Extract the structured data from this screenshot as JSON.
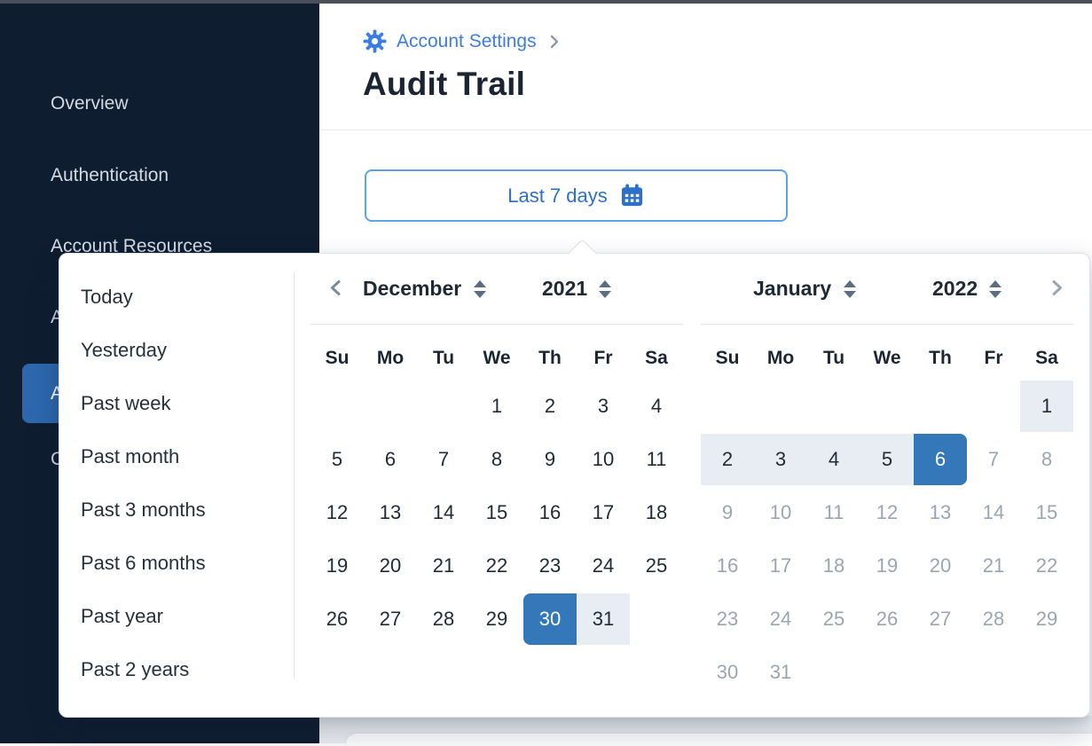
{
  "sidebar": {
    "items": [
      {
        "label": "Overview",
        "active": false
      },
      {
        "label": "Authentication",
        "active": false
      },
      {
        "label": "Account Resources",
        "active": false
      },
      {
        "label": "A",
        "active": false
      },
      {
        "label": "A",
        "active": true
      },
      {
        "label": "C",
        "active": false
      }
    ]
  },
  "breadcrumb": {
    "label": "Account Settings"
  },
  "page": {
    "title": "Audit Trail"
  },
  "date_button": {
    "label": "Last 7 days",
    "icon": "calendar-icon"
  },
  "picker": {
    "presets": [
      "Today",
      "Yesterday",
      "Past week",
      "Past month",
      "Past 3 months",
      "Past 6 months",
      "Past year",
      "Past 2 years"
    ],
    "weekdays": [
      "Su",
      "Mo",
      "Tu",
      "We",
      "Th",
      "Fr",
      "Sa"
    ],
    "months": [
      {
        "name": "December",
        "year": "2021",
        "nav": "prev",
        "days": [
          {
            "d": ""
          },
          {
            "d": ""
          },
          {
            "d": ""
          },
          {
            "d": "1"
          },
          {
            "d": "2"
          },
          {
            "d": "3"
          },
          {
            "d": "4"
          },
          {
            "d": "5"
          },
          {
            "d": "6"
          },
          {
            "d": "7"
          },
          {
            "d": "8"
          },
          {
            "d": "9"
          },
          {
            "d": "10"
          },
          {
            "d": "11"
          },
          {
            "d": "12"
          },
          {
            "d": "13"
          },
          {
            "d": "14"
          },
          {
            "d": "15"
          },
          {
            "d": "16"
          },
          {
            "d": "17"
          },
          {
            "d": "18"
          },
          {
            "d": "19"
          },
          {
            "d": "20"
          },
          {
            "d": "21"
          },
          {
            "d": "22"
          },
          {
            "d": "23"
          },
          {
            "d": "24"
          },
          {
            "d": "25"
          },
          {
            "d": "26"
          },
          {
            "d": "27"
          },
          {
            "d": "28"
          },
          {
            "d": "29"
          },
          {
            "d": "30",
            "s": "sel-start"
          },
          {
            "d": "31",
            "s": "range"
          },
          {
            "d": ""
          }
        ]
      },
      {
        "name": "January",
        "year": "2022",
        "nav": "next",
        "days": [
          {
            "d": ""
          },
          {
            "d": ""
          },
          {
            "d": ""
          },
          {
            "d": ""
          },
          {
            "d": ""
          },
          {
            "d": ""
          },
          {
            "d": "1",
            "s": "range"
          },
          {
            "d": "2",
            "s": "range"
          },
          {
            "d": "3",
            "s": "range"
          },
          {
            "d": "4",
            "s": "range"
          },
          {
            "d": "5",
            "s": "range"
          },
          {
            "d": "6",
            "s": "sel-end"
          },
          {
            "d": "7",
            "s": "muted"
          },
          {
            "d": "8",
            "s": "muted"
          },
          {
            "d": "9",
            "s": "muted"
          },
          {
            "d": "10",
            "s": "muted"
          },
          {
            "d": "11",
            "s": "muted"
          },
          {
            "d": "12",
            "s": "muted"
          },
          {
            "d": "13",
            "s": "muted"
          },
          {
            "d": "14",
            "s": "muted"
          },
          {
            "d": "15",
            "s": "muted"
          },
          {
            "d": "16",
            "s": "muted"
          },
          {
            "d": "17",
            "s": "muted"
          },
          {
            "d": "18",
            "s": "muted"
          },
          {
            "d": "19",
            "s": "muted"
          },
          {
            "d": "20",
            "s": "muted"
          },
          {
            "d": "21",
            "s": "muted"
          },
          {
            "d": "22",
            "s": "muted"
          },
          {
            "d": "23",
            "s": "muted"
          },
          {
            "d": "24",
            "s": "muted"
          },
          {
            "d": "25",
            "s": "muted"
          },
          {
            "d": "26",
            "s": "muted"
          },
          {
            "d": "27",
            "s": "muted"
          },
          {
            "d": "28",
            "s": "muted"
          },
          {
            "d": "29",
            "s": "muted"
          },
          {
            "d": "30",
            "s": "muted"
          },
          {
            "d": "31",
            "s": "muted"
          },
          {
            "d": ""
          },
          {
            "d": ""
          },
          {
            "d": ""
          },
          {
            "d": ""
          },
          {
            "d": ""
          }
        ]
      }
    ]
  },
  "colors": {
    "accent_blue": "#3478ba",
    "range_bg": "#e8edf3",
    "sidebar_bg": "#0f1d31",
    "active_item_bg": "#2d68ae",
    "link_blue": "#3b7de0",
    "muted_day": "#9aa5b1",
    "button_border": "#5ba4e6"
  },
  "icons": [
    "gear-icon",
    "calendar-icon",
    "chevron-right-icon",
    "chevron-left-icon",
    "stepper-up-icon",
    "stepper-down-icon"
  ]
}
